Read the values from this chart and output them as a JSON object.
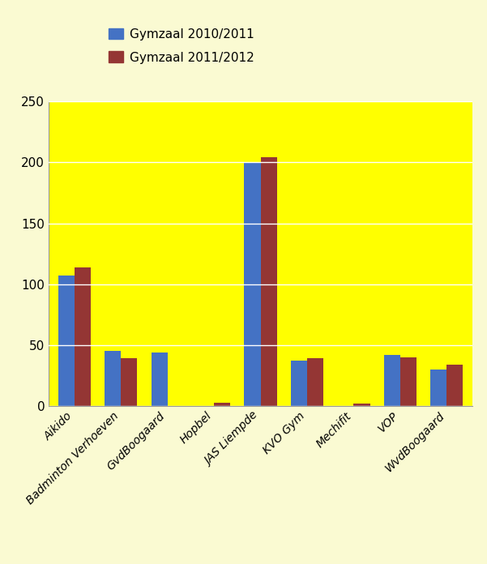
{
  "categories": [
    "Aikido",
    "Badminton Verhoeven",
    "GvdBoogaard",
    "Hopbel",
    "JAS Liempde",
    "KVO Gym",
    "Mechifit",
    "VOP",
    "WvdBoogaard"
  ],
  "series_2010": [
    107,
    45,
    44,
    0,
    200,
    37,
    0,
    42,
    30
  ],
  "series_2011": [
    114,
    39,
    0,
    3,
    204,
    39,
    2,
    40,
    34
  ],
  "color_2010": "#4472C4",
  "color_2011": "#943634",
  "legend_label_2010": "Gymzaal 2010/2011",
  "legend_label_2011": "Gymzaal 2011/2012",
  "ylim": [
    0,
    250
  ],
  "yticks": [
    0,
    50,
    100,
    150,
    200,
    250
  ],
  "background_outer": "#FAFAD2",
  "background_plot": "#FFFF00",
  "grid_color": "#FFFFFF",
  "bar_width": 0.35,
  "figsize": [
    6.01,
    6.96
  ],
  "dpi": 100
}
